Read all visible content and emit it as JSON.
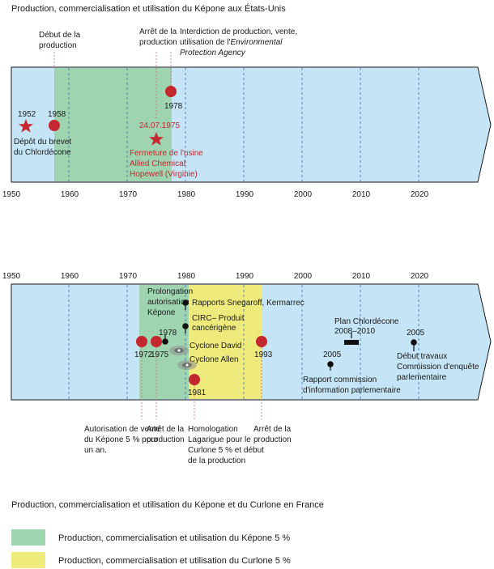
{
  "colors": {
    "timeline_bg": "#c5e4f5",
    "kepone_band": "#9fd4b0",
    "curlone_band": "#eeeb7c",
    "event_red": "#c4282f",
    "dot_black": "#111111",
    "dashed_grid": "#3c6fb0"
  },
  "usa": {
    "title": "Production, commercialisation et utilisation du Képone aux États-Unis",
    "axis_years": [
      "1950",
      "1960",
      "1970",
      "1980",
      "1990",
      "2000",
      "2010",
      "2020"
    ],
    "labels": {
      "debut_production": [
        "Début de la",
        "production"
      ],
      "arret_production": [
        "Arrêt de la",
        "production"
      ],
      "interdiction_line1": "Interdiction de production, vente,",
      "interdiction_line2_prefix": "utilisation de l'",
      "interdiction_line2_em": "Environmental",
      "interdiction_line3_em": "Protection Agency",
      "year_1952": "1952",
      "year_1958": "1958",
      "year_1978": "1978",
      "date_1975": "24.07.1975",
      "depot_brevet": [
        "Dépôt du brevet",
        "du Chlordécone"
      ],
      "fermeture": [
        "Fermeture de l'usine",
        "Allied Chemical",
        "Hopewell (Virginie)"
      ]
    }
  },
  "france": {
    "axis_years": [
      "1950",
      "1960",
      "1970",
      "1980",
      "1990",
      "2000",
      "2010",
      "2020"
    ],
    "labels": {
      "prolongation": [
        "Prolongation",
        "autorisation",
        "Képone"
      ],
      "year_1978": "1978",
      "rapports": "Rapports Snegaroff, Kermarrec",
      "circ": [
        "CIRC– Produit",
        "cancérigène"
      ],
      "cyclone_david": "Cyclone David",
      "cyclone_allen": "Cyclone Allen",
      "year_1972": "1972",
      "year_1975": "1975",
      "year_1981": "1981",
      "year_1993": "1993",
      "plan": [
        "Plan Chlordécone",
        "2008–2010"
      ],
      "year_2005a": "2005",
      "rapport_commission": [
        "Rapport commission",
        "d'information parlementaire"
      ],
      "year_2005b": "2005",
      "debut_travaux": [
        "Début travaux",
        "Commission d'enquête",
        "parlementaire"
      ],
      "autorisation_vente": [
        "Autorisation de vente",
        "du Képone 5 % pour",
        "un an."
      ],
      "arret_1975": [
        "Arrêt de la",
        "production"
      ],
      "homologation": [
        "Homologation",
        "Lagarigue pour le",
        "Curlone 5 % et début",
        "de la production"
      ],
      "arret_1993": [
        "Arrêt de la",
        "production"
      ]
    },
    "title": "Production, commercialisation et utilisation du Képone et du Curlone en France"
  },
  "legend": {
    "kepone": "Production, commercialisation et utilisation du Képone 5 %",
    "curlone": "Production, commercialisation et utilisation du Curlone 5 %"
  }
}
